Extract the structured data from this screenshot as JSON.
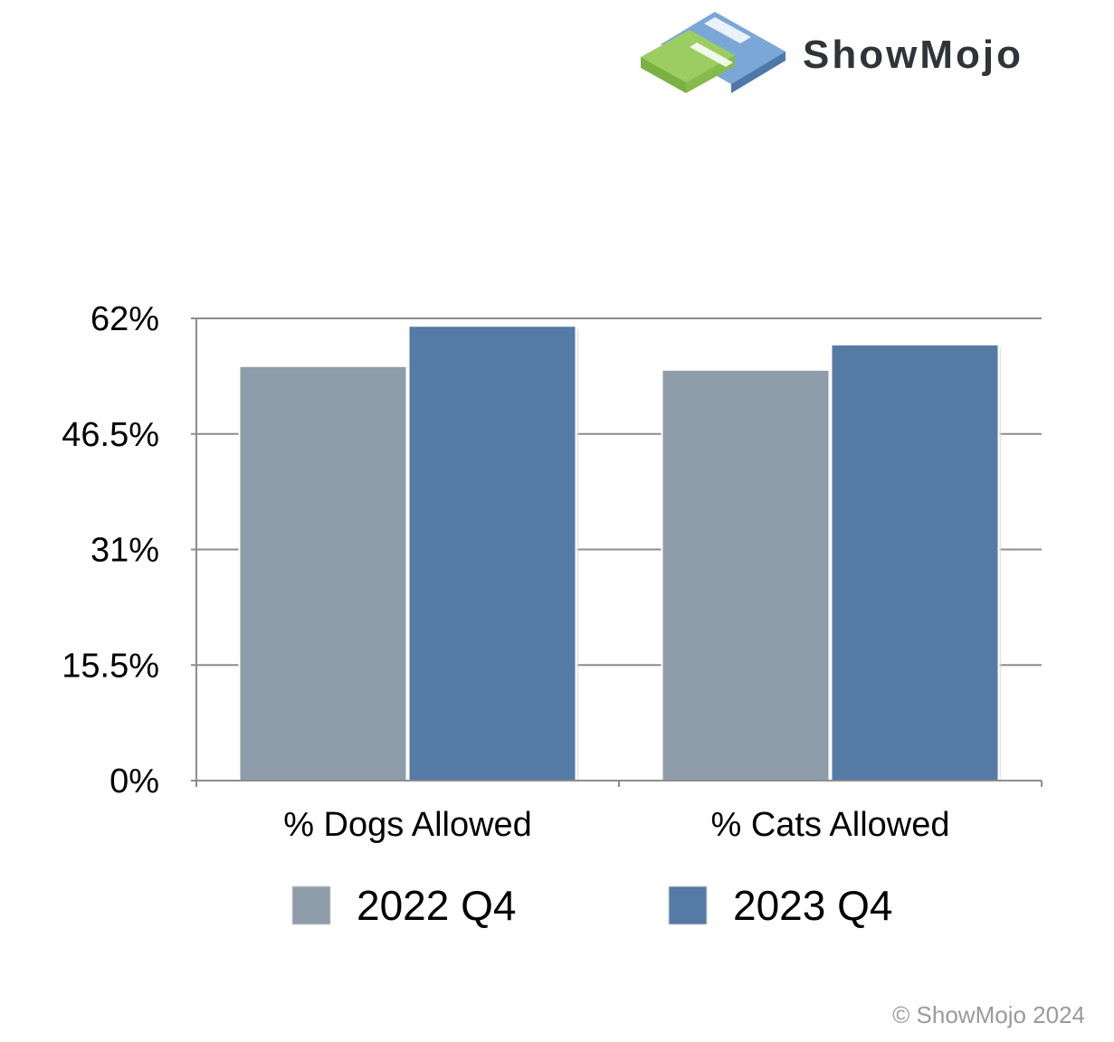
{
  "brand": {
    "name": "ShowMojo",
    "logo_icon": "showmojo-logo-icon"
  },
  "copyright": "© ShowMojo 2024",
  "colors": {
    "series_2022": "#8e9da9",
    "series_2023": "#567aa6",
    "grid": "#8c8c8c"
  },
  "chart_data": {
    "type": "bar",
    "categories": [
      "% Dogs Allowed",
      "% Cats Allowed"
    ],
    "series": [
      {
        "name": "2022 Q4",
        "values": [
          55.6,
          55.1
        ]
      },
      {
        "name": "2023 Q4",
        "values": [
          61.0,
          58.5
        ]
      }
    ],
    "y_ticks": [
      "0%",
      "15.5%",
      "31%",
      "46.5%",
      "62%"
    ],
    "y_tick_values": [
      0,
      15.5,
      31,
      46.5,
      62
    ],
    "ylim": [
      0,
      62
    ],
    "grid": true,
    "legend_position": "bottom",
    "title": "",
    "xlabel": "",
    "ylabel": ""
  }
}
